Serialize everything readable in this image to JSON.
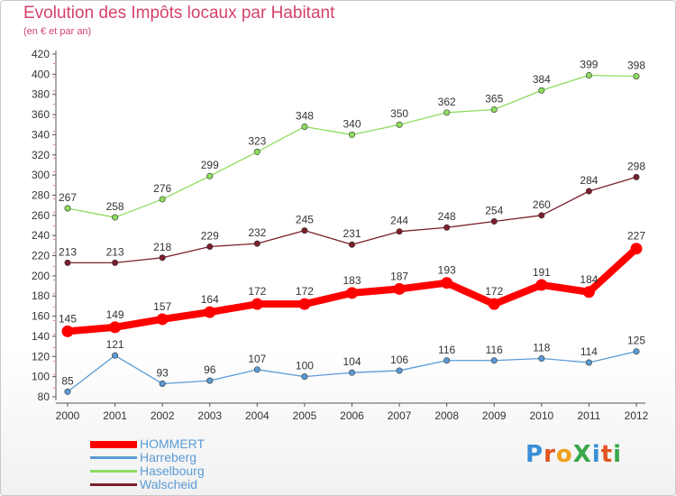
{
  "title": "Evolution des Impôts locaux par Habitant",
  "subtitle": "(en € et par an)",
  "logo": {
    "text": "ProXiti",
    "colors": [
      "#3a8fd6",
      "#e2541f",
      "#f0a01a",
      "#37a84a",
      "#3a8fd6",
      "#e2541f",
      "#37a84a"
    ]
  },
  "chart_data": {
    "type": "line",
    "x": [
      "2000",
      "2001",
      "2002",
      "2003",
      "2004",
      "2005",
      "2006",
      "2007",
      "2008",
      "2009",
      "2010",
      "2011",
      "2012"
    ],
    "ylim": [
      80,
      420
    ],
    "yticks": [
      80,
      100,
      120,
      140,
      160,
      180,
      200,
      220,
      240,
      260,
      280,
      300,
      320,
      340,
      360,
      380,
      400,
      420
    ],
    "grid": false,
    "legend_position": "bottom-left",
    "series": [
      {
        "name": "HOMMERT",
        "color": "#ff0000",
        "emphasis": true,
        "values": [
          145,
          149,
          157,
          164,
          172,
          172,
          183,
          187,
          193,
          172,
          191,
          184,
          227
        ]
      },
      {
        "name": "Harreberg",
        "color": "#5b9bd5",
        "values": [
          85,
          121,
          93,
          96,
          107,
          100,
          104,
          106,
          116,
          116,
          118,
          114,
          125
        ]
      },
      {
        "name": "Haselbourg",
        "color": "#8edc5e",
        "values": [
          267,
          258,
          276,
          299,
          323,
          348,
          340,
          350,
          362,
          365,
          384,
          399,
          398
        ]
      },
      {
        "name": "Walscheid",
        "color": "#7a1f2b",
        "values": [
          213,
          213,
          218,
          229,
          232,
          245,
          231,
          244,
          248,
          254,
          260,
          284,
          298
        ]
      }
    ]
  }
}
